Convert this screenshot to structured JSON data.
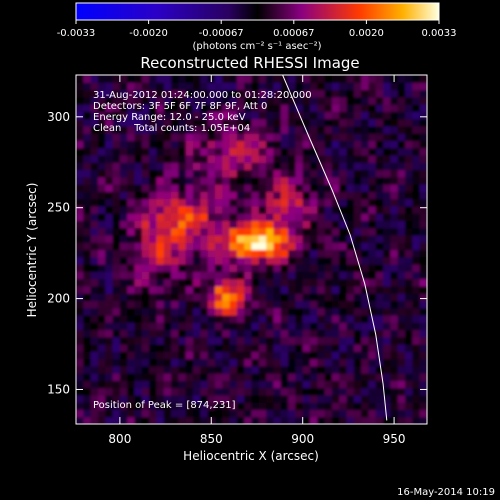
{
  "chart_data": {
    "type": "heatmap",
    "title": "Reconstructed RHESSI Image",
    "xlabel": "Heliocentric X (arcsec)",
    "ylabel": "Heliocentric Y (arcsec)",
    "xlim": [
      776,
      968
    ],
    "ylim": [
      131,
      323
    ],
    "x_ticks": [
      800,
      850,
      900,
      950
    ],
    "y_ticks": [
      150,
      200,
      250,
      300
    ],
    "colorbar": {
      "ticks": [
        "-0.0033",
        "-0.0020",
        "-0.00067",
        "0.00067",
        "0.0020",
        "0.0033"
      ],
      "range": [
        -0.0033,
        0.0033
      ],
      "unit_label": "(photons cm⁻² s⁻¹ asec⁻²)"
    },
    "annotations": [
      "31-Aug-2012 01:24:00.000 to 01:28:20.000",
      "Detectors: 3F 5F 6F 7F 8F 9F, Att 0",
      "Energy Range: 12.0 - 25.0 keV",
      "Clean    Total counts: 1.05E+04"
    ],
    "peak_label": "Position of Peak = [874,231]",
    "peak": [
      874,
      231
    ],
    "sources": [
      {
        "x": 874,
        "y": 231,
        "amp": 0.0033,
        "sx": 12,
        "sy": 7
      },
      {
        "x": 858,
        "y": 202,
        "amp": 0.0025,
        "sx": 7,
        "sy": 7
      },
      {
        "x": 835,
        "y": 244,
        "amp": 0.0016,
        "sx": 14,
        "sy": 11
      },
      {
        "x": 892,
        "y": 250,
        "amp": 0.0012,
        "sx": 10,
        "sy": 12
      },
      {
        "x": 862,
        "y": 280,
        "amp": 0.0011,
        "sx": 16,
        "sy": 12
      },
      {
        "x": 822,
        "y": 226,
        "amp": 0.001,
        "sx": 10,
        "sy": 14
      }
    ],
    "limb_curve": [
      [
        889,
        323
      ],
      [
        903,
        290
      ],
      [
        916,
        260
      ],
      [
        926,
        235
      ],
      [
        934,
        208
      ],
      [
        940,
        180
      ],
      [
        944,
        153
      ],
      [
        946,
        133
      ]
    ]
  },
  "footer_date": "16-May-2014 10:19"
}
